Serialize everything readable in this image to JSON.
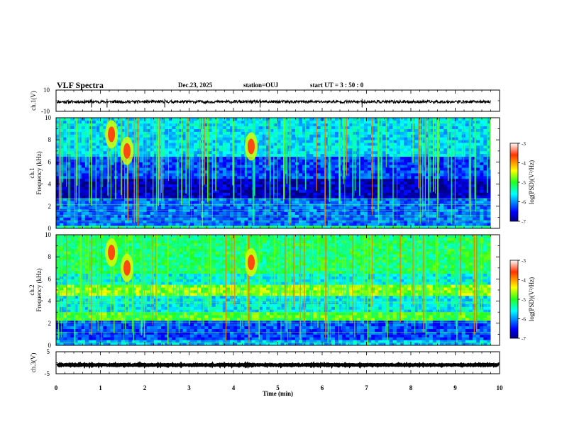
{
  "header": {
    "title": "VLF Spectra",
    "date": "Dec.23, 2025",
    "station": "station=OUJ",
    "start_ut": "start  UT =   3  : 50 : 0"
  },
  "chart_data": [
    {
      "id": "ch1-waveform",
      "type": "line",
      "ylabel": "ch.1(V)",
      "ylim": [
        -10,
        10
      ],
      "ytick_labels": [
        "10",
        "-10"
      ],
      "baseline_value": -1,
      "xlim": [
        0,
        10
      ],
      "spikes_min": [
        0.8,
        1.15,
        2.45,
        4.6,
        6.9
      ]
    },
    {
      "id": "ch1-spectrogram",
      "type": "heatmap",
      "ylabel": "ch.1\nFrequency (kHz)",
      "ylim": [
        0,
        10
      ],
      "ytick_labels": [
        "0",
        "2",
        "4",
        "6",
        "8",
        "10"
      ],
      "xlim": [
        0,
        10
      ],
      "data_end_min": 9.8,
      "color_range": [
        -7,
        -3
      ],
      "colorbar_ticks": [
        "-3",
        "-4",
        "-5",
        "-6",
        "-7"
      ],
      "colorbar_label": "log(PSD)(V²/Hz)",
      "bursts": [
        {
          "t_min": 1.25,
          "f_khz": 8.5
        },
        {
          "t_min": 1.6,
          "f_khz": 7.0
        },
        {
          "t_min": 4.4,
          "f_khz": 7.4
        }
      ]
    },
    {
      "id": "ch2-spectrogram",
      "type": "heatmap",
      "ylabel": "ch.2\nFrequency (kHz)",
      "ylim": [
        0,
        10
      ],
      "ytick_labels": [
        "0",
        "2",
        "4",
        "6",
        "8",
        "10"
      ],
      "xlim": [
        0,
        10
      ],
      "data_end_min": 9.8,
      "color_range": [
        -7,
        -3
      ],
      "colorbar_ticks": [
        "-3",
        "-4",
        "-5",
        "-6",
        "-7"
      ],
      "colorbar_label": "log(PSD)(V²/Hz)",
      "bursts": [
        {
          "t_min": 1.25,
          "f_khz": 8.4
        },
        {
          "t_min": 1.6,
          "f_khz": 7.0
        },
        {
          "t_min": 4.4,
          "f_khz": 7.5
        }
      ]
    },
    {
      "id": "ch3-waveform",
      "type": "line",
      "ylabel": "ch.3(V)",
      "ylim": [
        -5,
        5
      ],
      "ytick_labels": [
        "5",
        "-5"
      ],
      "baseline_value": -1,
      "xlim": [
        0,
        10
      ]
    }
  ],
  "xaxis": {
    "label": "Time (min)",
    "ticks": [
      "0",
      "1",
      "2",
      "3",
      "4",
      "5",
      "6",
      "7",
      "8",
      "9",
      "10"
    ]
  }
}
